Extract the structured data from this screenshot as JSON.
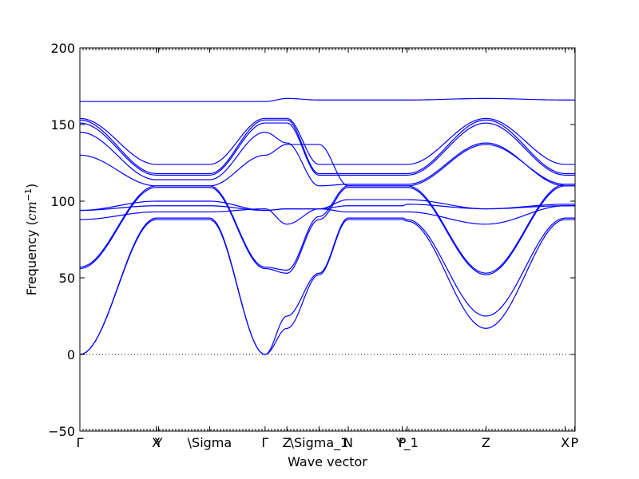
{
  "chart_data": {
    "type": "line",
    "title": "",
    "xlabel": "Wave vector",
    "ylabel": "Frequency ($cm^{-1}$)",
    "ylabel_text": "Frequency (",
    "ylabel_math_base": "cm",
    "ylabel_math_sup": "−1",
    "ylabel_close": ")",
    "ylim": [
      -50,
      200
    ],
    "yticks": [
      -50,
      0,
      50,
      100,
      150,
      200
    ],
    "xlim": [
      0,
      1
    ],
    "grid": false,
    "zero_line": true,
    "line_color": "#0000ff",
    "xticks": [
      {
        "label": "Γ",
        "x": 0.0
      },
      {
        "label": "X",
        "x": 0.154
      },
      {
        "label": "Y",
        "x": 0.159
      },
      {
        "label": "\\Sigma",
        "x": 0.262
      },
      {
        "label": "Γ",
        "x": 0.374
      },
      {
        "label": "Z",
        "x": 0.418
      },
      {
        "label": "\\Sigma_1",
        "x": 0.483
      },
      {
        "label": "N",
        "x": 0.542
      },
      {
        "label": "P",
        "x": 0.651
      },
      {
        "label": "Y_1",
        "x": 0.661
      },
      {
        "label": "Z",
        "x": 0.82
      },
      {
        "label": "X",
        "x": 0.98
      },
      {
        "label": "P",
        "x": 0.999
      }
    ],
    "x": [
      0.0,
      0.154,
      0.262,
      0.374,
      0.418,
      0.483,
      0.542,
      0.651,
      0.661,
      0.82,
      0.98,
      1.0
    ],
    "series": [
      {
        "values": [
          0,
          88,
          88,
          0,
          17,
          52,
          88,
          88,
          87,
          17,
          88,
          88
        ]
      },
      {
        "values": [
          0,
          89,
          89,
          0,
          25,
          53,
          89,
          89,
          88,
          25,
          89,
          89
        ]
      },
      {
        "values": [
          56,
          109,
          109,
          56,
          53,
          88,
          109,
          109,
          109,
          52,
          110,
          110
        ]
      },
      {
        "values": [
          57,
          110,
          110,
          57,
          55,
          90,
          110,
          110,
          110,
          53,
          111,
          111
        ]
      },
      {
        "values": [
          88,
          93,
          93,
          95,
          85,
          95,
          93,
          93,
          93,
          85,
          97,
          97
        ]
      },
      {
        "values": [
          94,
          97,
          97,
          94,
          95,
          95,
          97,
          97,
          98,
          95,
          97,
          97
        ]
      },
      {
        "values": [
          94,
          100,
          100,
          94,
          95,
          95,
          101,
          101,
          101,
          95,
          98,
          98
        ]
      },
      {
        "values": [
          130,
          110,
          110,
          130,
          137,
          137,
          110,
          110,
          110,
          137,
          111,
          111
        ]
      },
      {
        "values": [
          145,
          114,
          114,
          145,
          138,
          110,
          111,
          111,
          111,
          138,
          110,
          110
        ]
      },
      {
        "values": [
          151,
          117,
          117,
          151,
          151,
          117,
          117,
          117,
          117,
          151,
          117,
          117
        ]
      },
      {
        "values": [
          153,
          118,
          118,
          153,
          153,
          118,
          118,
          118,
          118,
          153,
          118,
          118
        ]
      },
      {
        "values": [
          154,
          124,
          124,
          154,
          154,
          124,
          124,
          124,
          124,
          154,
          124,
          124
        ]
      },
      {
        "values": [
          165,
          165,
          165,
          165,
          167,
          166,
          166,
          166,
          166,
          167,
          166,
          166
        ]
      }
    ]
  }
}
